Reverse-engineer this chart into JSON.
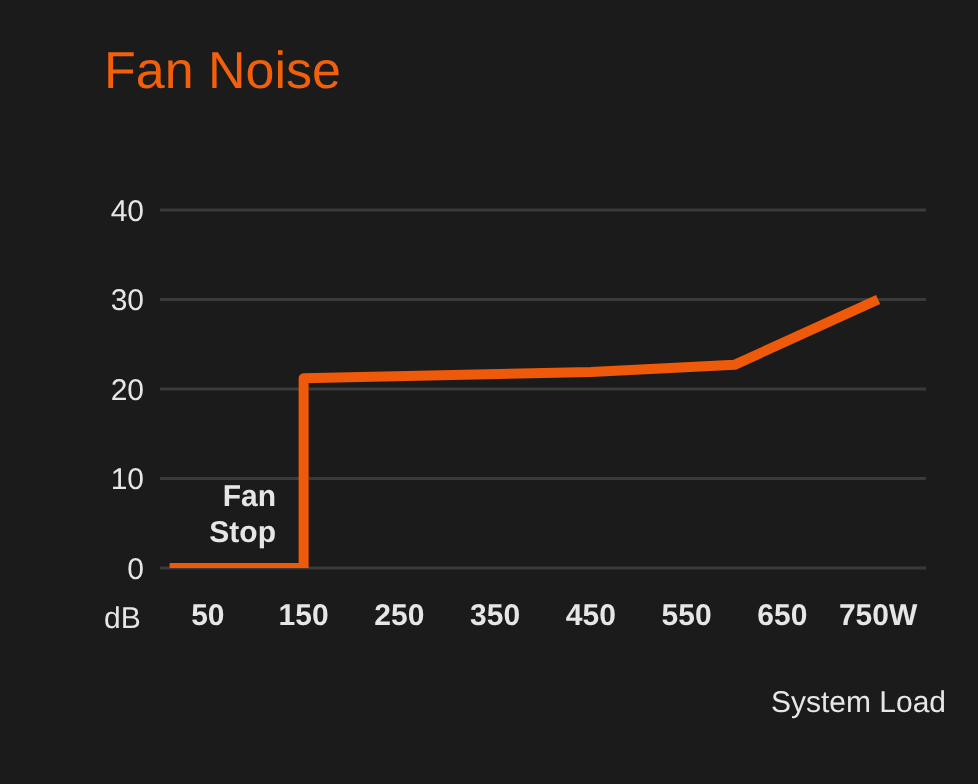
{
  "chart_data": {
    "type": "line",
    "title": "Fan Noise",
    "xlabel": "System Load",
    "ylabel": "dB",
    "x": [
      10,
      150,
      150,
      450,
      600,
      750
    ],
    "series": [
      {
        "color": "#ee5a0a",
        "values": [
          0,
          0,
          21.2,
          21.9,
          22.7,
          30
        ]
      }
    ],
    "xlim": [
      0,
      800
    ],
    "xticks": [
      50,
      150,
      250,
      350,
      450,
      550,
      650,
      {
        "value": 750,
        "label": "750W"
      }
    ],
    "ylim": [
      0,
      40
    ],
    "yticks": [
      0,
      10,
      20,
      30,
      40
    ],
    "grid": "y",
    "legend": false,
    "marker": "none",
    "line_style": "solid",
    "annotations": [
      "Fan Stop"
    ]
  }
}
